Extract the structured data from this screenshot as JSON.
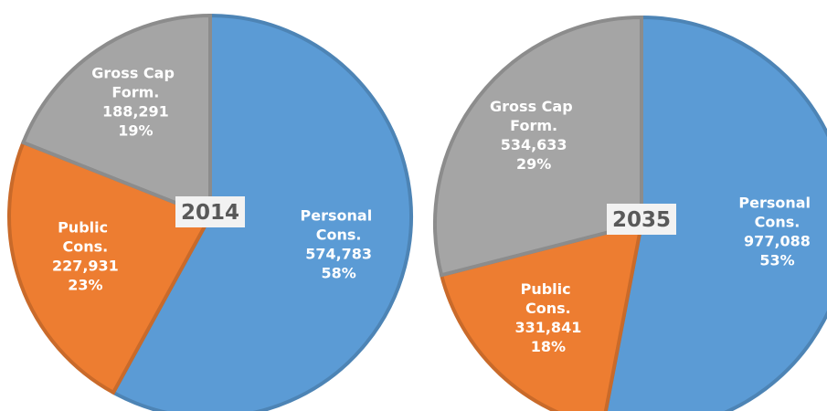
{
  "chart_data": [
    {
      "type": "pie",
      "title": "2014",
      "categories": [
        "Personal Cons.",
        "Public Cons.",
        "Gross Cap Form."
      ],
      "values": [
        574783,
        227931,
        188291
      ],
      "value_labels": [
        "574,783",
        "227,931",
        "188,291"
      ],
      "percent_labels": [
        "58%",
        "23%",
        "19%"
      ],
      "colors": [
        "#5b9bd5",
        "#ed7d31",
        "#a5a5a5"
      ]
    },
    {
      "type": "pie",
      "title": "2035",
      "categories": [
        "Personal Cons.",
        "Public Cons.",
        "Gross Cap Form."
      ],
      "values": [
        977088,
        331841,
        534633
      ],
      "value_labels": [
        "977,088",
        "331,841",
        "534,633"
      ],
      "percent_labels": [
        "53%",
        "18%",
        "29%"
      ],
      "colors": [
        "#5b9bd5",
        "#ed7d31",
        "#a5a5a5"
      ]
    }
  ]
}
